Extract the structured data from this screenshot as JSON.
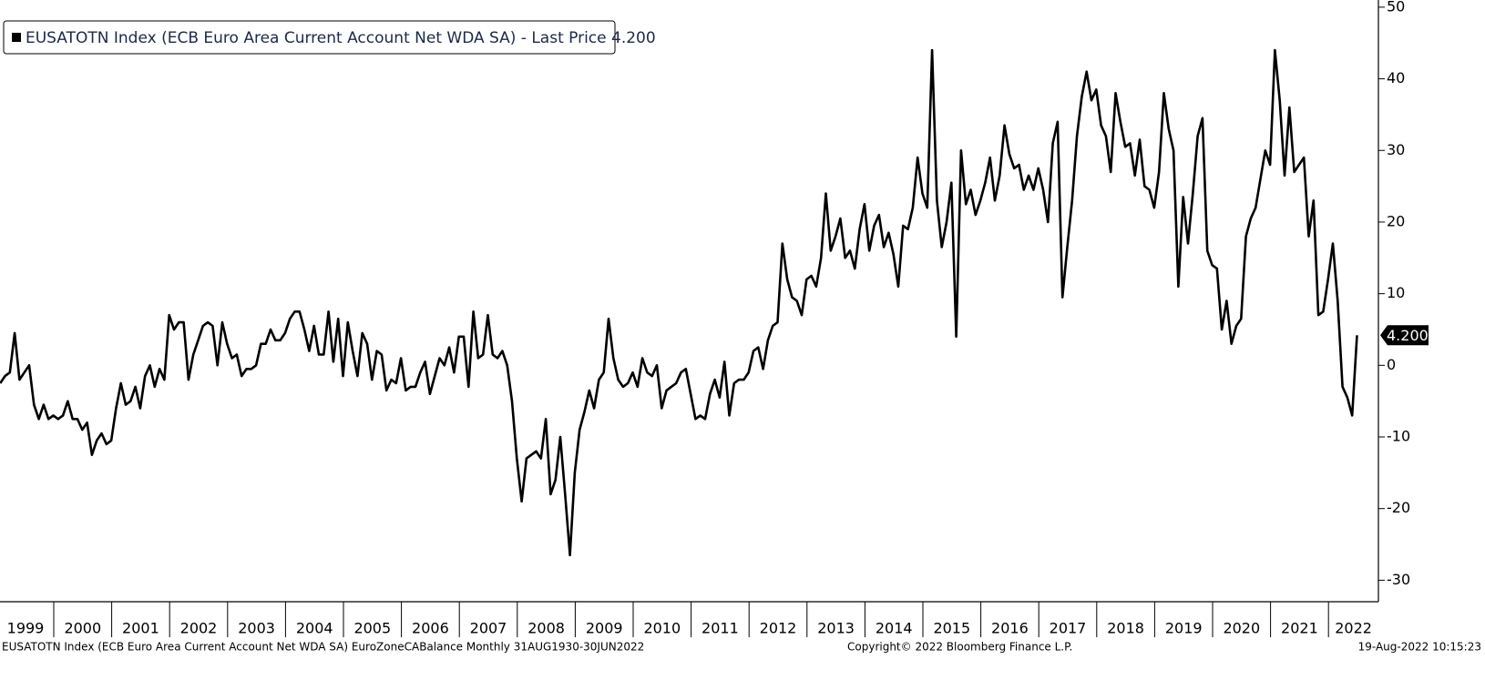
{
  "chart_data": {
    "type": "line",
    "legend": "EUSATOTN Index (ECB Euro Area Current Account Net WDA SA) - Last Price 4.200",
    "last_price_label": "4.200",
    "footer_left": "EUSATOTN Index (ECB Euro Area Current Account Net WDA SA) EuroZoneCABalance  Monthly 31AUG1930-30JUN2022",
    "footer_center": "Copyright© 2022 Bloomberg Finance L.P.",
    "footer_right": "19-Aug-2022 10:15:23",
    "ylim": [
      -33,
      51
    ],
    "yticks": [
      -30,
      -20,
      -10,
      0,
      10,
      20,
      30,
      40,
      50
    ],
    "categories": [
      "1999",
      null,
      null,
      null,
      null,
      null,
      null,
      null,
      null,
      null,
      null,
      null,
      "2000",
      null,
      null,
      null,
      null,
      null,
      null,
      null,
      null,
      null,
      null,
      null,
      "2001",
      null,
      null,
      null,
      null,
      null,
      null,
      null,
      null,
      null,
      null,
      null,
      "2002",
      null,
      null,
      null,
      null,
      null,
      null,
      null,
      null,
      null,
      null,
      null,
      "2003",
      null,
      null,
      null,
      null,
      null,
      null,
      null,
      null,
      null,
      null,
      null,
      "2004",
      null,
      null,
      null,
      null,
      null,
      null,
      null,
      null,
      null,
      null,
      null,
      "2005",
      null,
      null,
      null,
      null,
      null,
      null,
      null,
      null,
      null,
      null,
      null,
      "2006",
      null,
      null,
      null,
      null,
      null,
      null,
      null,
      null,
      null,
      null,
      null,
      "2007",
      null,
      null,
      null,
      null,
      null,
      null,
      null,
      null,
      null,
      null,
      null,
      "2008",
      null,
      null,
      null,
      null,
      null,
      null,
      null,
      null,
      null,
      null,
      null,
      "2009",
      null,
      null,
      null,
      null,
      null,
      null,
      null,
      null,
      null,
      null,
      null,
      "2010",
      null,
      null,
      null,
      null,
      null,
      null,
      null,
      null,
      null,
      null,
      null,
      "2011",
      null,
      null,
      null,
      null,
      null,
      null,
      null,
      null,
      null,
      null,
      null,
      "2012",
      null,
      null,
      null,
      null,
      null,
      null,
      null,
      null,
      null,
      null,
      null,
      "2013",
      null,
      null,
      null,
      null,
      null,
      null,
      null,
      null,
      null,
      null,
      null,
      "2014",
      null,
      null,
      null,
      null,
      null,
      null,
      null,
      null,
      null,
      null,
      null,
      "2015",
      null,
      null,
      null,
      null,
      null,
      null,
      null,
      null,
      null,
      null,
      null,
      "2016",
      null,
      null,
      null,
      null,
      null,
      null,
      null,
      null,
      null,
      null,
      null,
      "2017",
      null,
      null,
      null,
      null,
      null,
      null,
      null,
      null,
      null,
      null,
      null,
      "2018",
      null,
      null,
      null,
      null,
      null,
      null,
      null,
      null,
      null,
      null,
      null,
      "2019",
      null,
      null,
      null,
      null,
      null,
      null,
      null,
      null,
      null,
      null,
      null,
      "2020",
      null,
      null,
      null,
      null,
      null,
      null,
      null,
      null,
      null,
      null,
      null,
      "2021",
      null,
      null,
      null,
      null,
      null,
      null,
      null,
      null,
      null,
      null,
      null,
      "2022",
      null,
      null,
      null,
      null,
      null
    ],
    "series": [
      {
        "name": "EUSATOTN Index",
        "color": "#000000",
        "values": [
          -2.5,
          -1.5,
          -1,
          4.5,
          -2,
          -1,
          0,
          -5.5,
          -7.5,
          -5.5,
          -7.5,
          -7,
          -7.5,
          -7,
          -5,
          -7.5,
          -7.5,
          -9,
          -8,
          -12.5,
          -10.5,
          -9.5,
          -11,
          -10.5,
          -6,
          -2.5,
          -5.5,
          -5,
          -3,
          -6,
          -1.5,
          0,
          -3,
          -0.5,
          -2,
          7,
          5,
          6,
          6,
          -2,
          1.5,
          3.5,
          5.5,
          6,
          5.5,
          0,
          6,
          3,
          1,
          1.5,
          -1.5,
          -0.5,
          -0.5,
          0,
          3,
          3,
          5,
          3.5,
          3.5,
          4.5,
          6.5,
          7.5,
          7.5,
          5,
          2,
          5.5,
          1.5,
          1.5,
          7.5,
          0.5,
          6.5,
          -1.5,
          6,
          2,
          -1.5,
          4.5,
          3,
          -2,
          2,
          1.5,
          -3.5,
          -2,
          -2.5,
          1,
          -3.5,
          -3,
          -3,
          -1,
          0.5,
          -4,
          -1.5,
          1,
          0,
          2.5,
          -1,
          4,
          4,
          -3,
          7.5,
          1,
          1.5,
          7,
          1.5,
          1,
          2,
          0,
          -5,
          -13,
          -19,
          -13,
          -12.5,
          -12,
          -13,
          -7.5,
          -18,
          -16,
          -10,
          -18,
          -26.5,
          -15,
          -9,
          -6.5,
          -3.5,
          -6,
          -2,
          -1,
          6.5,
          1,
          -2,
          -3,
          -2.5,
          -1,
          -3,
          1,
          -1,
          -1.5,
          0,
          -6,
          -3.5,
          -3,
          -2.5,
          -1,
          -0.5,
          -4,
          -7.5,
          -7,
          -7.5,
          -4,
          -2,
          -4.5,
          0.5,
          -7,
          -2.5,
          -2,
          -2,
          -1,
          2,
          2.5,
          -0.5,
          3.5,
          5.5,
          6,
          17,
          12,
          9.5,
          9,
          7,
          12,
          12.5,
          11,
          15,
          24,
          16,
          18,
          20.5,
          15,
          16,
          13.5,
          19,
          22.5,
          16,
          19.5,
          21,
          16.5,
          18.5,
          15.5,
          11,
          19.5,
          19,
          22,
          29,
          24,
          22,
          44,
          23,
          16.5,
          20,
          25.5,
          4,
          30,
          22.5,
          24.5,
          21,
          23,
          25.5,
          29,
          23,
          26.5,
          33.5,
          29.5,
          27.5,
          28,
          24.5,
          26.5,
          24.5,
          27.5,
          24.5,
          20,
          31,
          34,
          9.5,
          16.5,
          23,
          32,
          37.5,
          41,
          37,
          38.5,
          33.5,
          32,
          27,
          38,
          34,
          30.5,
          31,
          26.5,
          31.5,
          25,
          24.5,
          22,
          27,
          38,
          33,
          30,
          11,
          23.5,
          17,
          24,
          32,
          34.5,
          16,
          14,
          13.5,
          5,
          9,
          3,
          5.5,
          6.5,
          18,
          20.5,
          22,
          26,
          30,
          28,
          44,
          37,
          26.5,
          36,
          27,
          28,
          29,
          18,
          23,
          7,
          7.5,
          12,
          17,
          9,
          -3,
          -4.5,
          -7,
          4.2
        ]
      }
    ]
  }
}
